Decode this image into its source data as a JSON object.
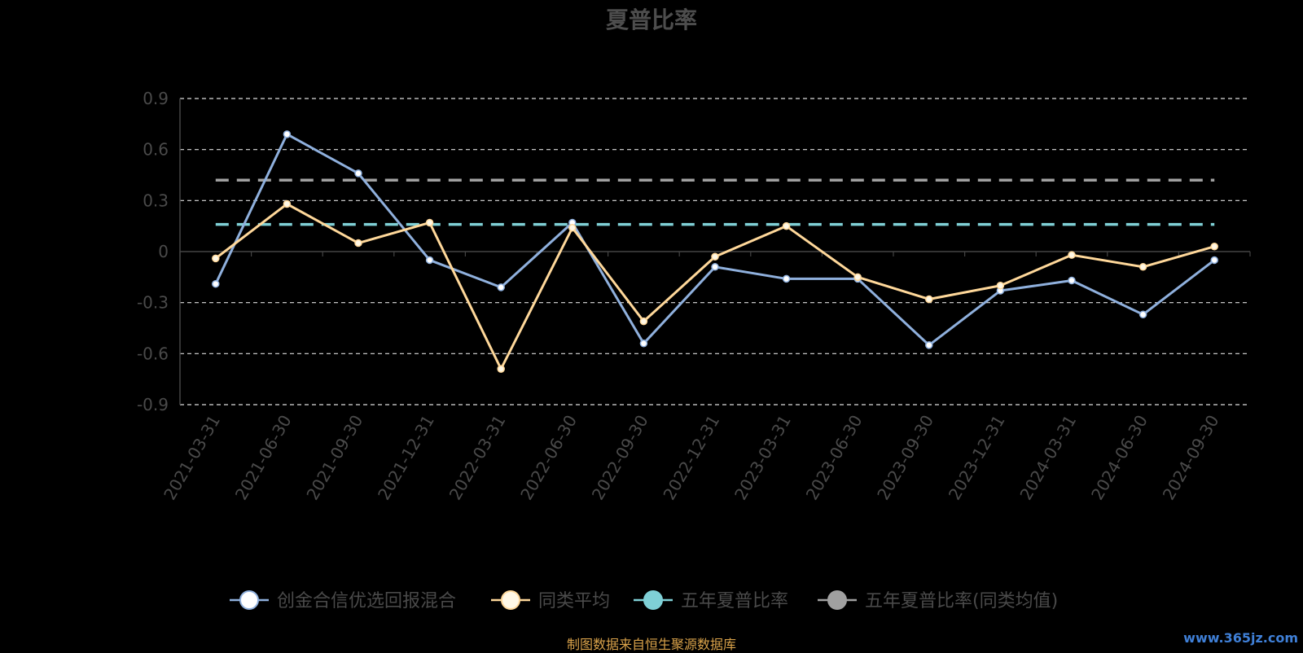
{
  "footer": {
    "source": "制图数据来自恒生聚源数据库"
  },
  "watermark": "www.365jz.com",
  "chart_data": {
    "type": "line",
    "title": "夏普比率",
    "xlabel": "",
    "ylabel": "",
    "ylim": [
      -0.9,
      0.9
    ],
    "yticks": [
      0.9,
      0.6,
      0.3,
      0,
      -0.3,
      -0.6,
      -0.9
    ],
    "ytick_labels": [
      "0.9",
      "0.6",
      "0.3",
      "0",
      "-0.3",
      "-0.6",
      "-0.9"
    ],
    "grid": true,
    "legend_position": "bottom",
    "categories": [
      "2021-03-31",
      "2021-06-30",
      "2021-09-30",
      "2021-12-31",
      "2022-03-31",
      "2022-06-30",
      "2022-09-30",
      "2022-12-31",
      "2023-03-31",
      "2023-06-30",
      "2023-09-30",
      "2023-12-31",
      "2024-03-31",
      "2024-06-30",
      "2024-09-30"
    ],
    "series": [
      {
        "name": "创金合信优选回报混合",
        "kind": "line",
        "color": "#8fb0dd",
        "marker_fill": "#ffffff",
        "values": [
          -0.19,
          0.69,
          0.46,
          -0.05,
          -0.21,
          0.17,
          -0.54,
          -0.09,
          -0.16,
          -0.16,
          -0.55,
          -0.23,
          -0.17,
          -0.37,
          -0.05
        ]
      },
      {
        "name": "同类平均",
        "kind": "line",
        "color": "#ffd89a",
        "marker_fill": "#fff8e6",
        "values": [
          -0.04,
          0.28,
          0.05,
          0.17,
          -0.69,
          0.14,
          -0.41,
          -0.03,
          0.15,
          -0.15,
          -0.28,
          -0.2,
          -0.02,
          -0.09,
          0.03
        ]
      },
      {
        "name": "五年夏普比率",
        "kind": "hline",
        "color": "#7fd0d6",
        "value": 0.16
      },
      {
        "name": "五年夏普比率(同类均值)",
        "kind": "hline",
        "color": "#a0a0a0",
        "value": 0.42
      }
    ]
  }
}
